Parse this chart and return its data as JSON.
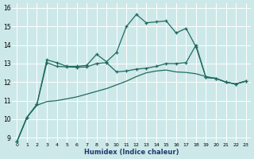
{
  "xlabel": "Humidex (Indice chaleur)",
  "bg_color": "#cde8e8",
  "line_color": "#1e6b60",
  "xlim": [
    -0.5,
    23.5
  ],
  "ylim": [
    8.75,
    16.25
  ],
  "yticks": [
    9,
    10,
    11,
    12,
    13,
    14,
    15,
    16
  ],
  "xticks": [
    0,
    1,
    2,
    3,
    4,
    5,
    6,
    7,
    8,
    9,
    10,
    11,
    12,
    13,
    14,
    15,
    16,
    17,
    18,
    19,
    20,
    21,
    22,
    23
  ],
  "curve1_x": [
    0,
    1,
    2,
    3,
    4,
    5,
    6,
    7,
    8,
    9,
    10,
    11,
    12,
    13,
    14,
    15,
    16,
    17,
    18,
    19,
    20,
    21,
    22,
    23
  ],
  "curve1_y": [
    8.8,
    10.1,
    10.8,
    13.2,
    13.05,
    12.85,
    12.85,
    12.9,
    13.5,
    13.1,
    13.6,
    15.0,
    15.65,
    15.2,
    15.25,
    15.3,
    14.65,
    14.9,
    13.9,
    12.25,
    12.2,
    12.0,
    11.9,
    12.05
  ],
  "curve2_x": [
    0,
    1,
    2,
    3,
    4,
    5,
    6,
    7,
    8,
    9,
    10,
    11,
    12,
    13,
    14,
    15,
    16,
    17,
    18,
    19,
    20,
    21,
    22,
    23
  ],
  "curve2_y": [
    8.8,
    10.1,
    10.8,
    13.05,
    12.85,
    12.82,
    12.8,
    12.82,
    13.0,
    13.05,
    12.55,
    12.6,
    12.7,
    12.75,
    12.85,
    13.0,
    13.0,
    13.05,
    14.0,
    12.25,
    12.2,
    12.0,
    11.9,
    12.05
  ],
  "curve3_x": [
    0,
    1,
    2,
    3,
    4,
    5,
    6,
    7,
    8,
    9,
    10,
    11,
    12,
    13,
    14,
    15,
    16,
    17,
    18,
    19,
    20,
    21,
    22,
    23
  ],
  "curve3_y": [
    8.8,
    10.1,
    10.75,
    10.95,
    11.0,
    11.1,
    11.2,
    11.35,
    11.5,
    11.65,
    11.85,
    12.05,
    12.3,
    12.5,
    12.6,
    12.65,
    12.55,
    12.52,
    12.45,
    12.3,
    12.2,
    12.0,
    11.9,
    12.05
  ]
}
